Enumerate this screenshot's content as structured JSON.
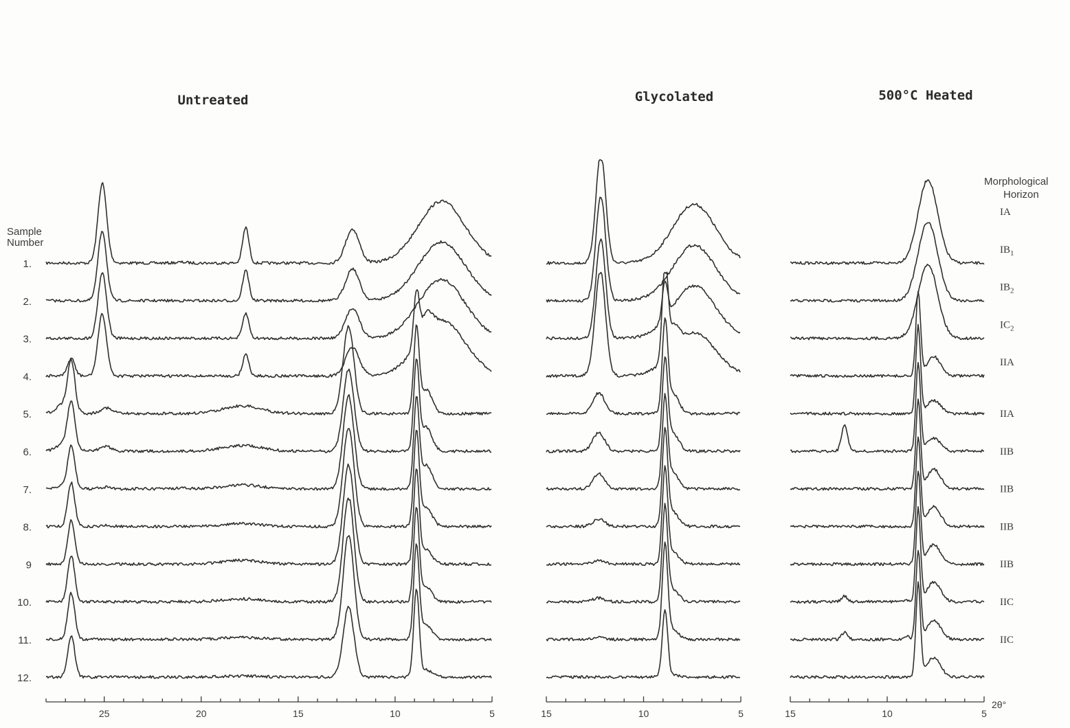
{
  "chart_data": {
    "type": "line",
    "x_unit": "2θ°",
    "panels": [
      {
        "title": "Untreated",
        "xlim": [
          28,
          5
        ],
        "ticks": [
          25,
          20,
          15,
          10,
          5
        ],
        "peaks": [
          [
            27.0,
            0.3,
            26,
            0.4
          ],
          [
            26.7,
            2.2,
            75,
            0.18
          ],
          [
            25.1,
            3.2,
            120,
            0.22
          ],
          [
            24.9,
            0.25,
            14,
            0.3
          ],
          [
            21.0,
            0.1,
            4,
            0.3
          ],
          [
            17.9,
            0.3,
            28,
            1.0
          ],
          [
            17.7,
            1.2,
            52,
            0.16
          ],
          [
            12.4,
            5.0,
            170,
            0.28
          ],
          [
            12.2,
            0.6,
            52,
            0.35
          ],
          [
            8.9,
            1.4,
            150,
            0.14
          ],
          [
            8.4,
            1.0,
            70,
            0.3
          ],
          [
            7.6,
            1.2,
            90,
            1.2
          ]
        ]
      },
      {
        "title": "Glycolated",
        "xlim": [
          15,
          5
        ],
        "ticks": [
          15,
          10,
          5
        ],
        "peaks": [
          [
            12.2,
            5.0,
            160,
            0.25
          ],
          [
            12.3,
            0.7,
            55,
            0.3
          ],
          [
            8.9,
            1.4,
            150,
            0.14
          ],
          [
            8.5,
            0.8,
            60,
            0.3
          ],
          [
            7.4,
            1.2,
            90,
            1.1
          ]
        ]
      },
      {
        "title": "500°C Heated",
        "xlim": [
          15,
          5
        ],
        "ticks": [
          15,
          10,
          5
        ],
        "peaks": [
          [
            7.9,
            4.0,
            135,
            0.5
          ],
          [
            12.2,
            0.3,
            40,
            0.15
          ],
          [
            9.0,
            0.4,
            20,
            0.1
          ],
          [
            8.4,
            1.2,
            150,
            0.12
          ],
          [
            7.6,
            0.8,
            95,
            0.35
          ]
        ]
      }
    ],
    "samples": [
      {
        "number": "1.",
        "horizon": "IA",
        "horizon_sub": "",
        "profile": [
          0,
          0,
          0.95,
          0.2,
          0.3,
          0,
          1.0,
          0,
          0,
          0,
          0,
          0.95,
          1.0,
          0,
          0,
          0,
          0,
          0,
          0,
          1.0,
          0,
          0,
          0,
          0
        ],
        "glyc": [
          1.0,
          0,
          0,
          0,
          0.95
        ],
        "heat": [
          0.9,
          0,
          0,
          0,
          0
        ]
      },
      {
        "number": "2.",
        "horizon": "IB",
        "horizon_sub": "1",
        "profile": [
          0,
          0,
          0.85,
          0,
          0,
          0,
          0.85,
          0,
          0,
          0,
          0,
          0.9,
          0.95,
          0,
          0,
          0,
          0,
          0,
          0,
          0.95,
          0,
          0,
          0,
          0
        ],
        "glyc": [
          0.95,
          0,
          0,
          0,
          0.9
        ],
        "heat": [
          0.85,
          0,
          0,
          0,
          0
        ]
      },
      {
        "number": "3.",
        "horizon": "IB",
        "horizon_sub": "2",
        "profile": [
          0,
          0,
          0.8,
          0,
          0,
          0,
          0.7,
          0,
          0,
          0,
          0,
          0.85,
          0.9,
          0,
          0,
          0,
          0,
          0,
          0,
          0.95,
          0,
          0,
          0,
          0
        ],
        "glyc": [
          0.9,
          0,
          0.35,
          0,
          0.85
        ],
        "heat": [
          0.8,
          0,
          0,
          0,
          0
        ]
      },
      {
        "number": "4.",
        "horizon": "IC",
        "horizon_sub": "2",
        "profile": [
          0,
          0.35,
          0.75,
          0,
          0,
          0,
          0.6,
          0,
          0,
          0,
          0,
          0.8,
          0.5,
          0,
          0,
          0,
          0,
          0.5,
          0.4,
          0.9,
          0,
          0,
          0,
          0
        ],
        "glyc": [
          0.7,
          0.8,
          0.9,
          0.6,
          0.7
        ],
        "heat": [
          0,
          0,
          0,
          0.8,
          0.3
        ]
      },
      {
        "number": "5.",
        "horizon": "IIA",
        "horizon_sub": "",
        "profile": [
          0.6,
          0.9,
          0,
          0.6,
          0,
          0.4,
          0,
          0.75,
          0,
          0,
          0,
          0,
          0.65,
          0,
          0,
          0,
          0,
          0.8,
          0.5,
          0,
          0,
          0,
          0,
          0
        ],
        "glyc": [
          0,
          0.55,
          0.85,
          0.5,
          0
        ],
        "heat": [
          0,
          0,
          0,
          0.85,
          0.2
        ]
      },
      {
        "number": "6.",
        "horizon": "IIA",
        "horizon_sub": "",
        "profile": [
          0.5,
          0.85,
          0,
          0.5,
          0,
          0.3,
          0,
          0.7,
          0,
          0,
          0,
          0,
          0.55,
          0,
          0,
          0,
          0,
          0.85,
          0.5,
          0,
          0,
          0,
          0,
          0
        ],
        "glyc": [
          0,
          0.5,
          0.85,
          0.45,
          0
        ],
        "heat": [
          0,
          1.0,
          0,
          0.85,
          0.2
        ]
      },
      {
        "number": "7.",
        "horizon": "IIB",
        "horizon_sub": "",
        "profile": [
          0.2,
          0.8,
          0,
          0.2,
          0.3,
          0.2,
          0,
          0.8,
          0,
          0,
          0,
          0,
          0.35,
          0,
          0,
          0,
          0,
          0.85,
          0.5,
          0,
          0,
          0,
          0,
          0
        ],
        "glyc": [
          0,
          0.4,
          0.85,
          0.4,
          0
        ],
        "heat": [
          0,
          0,
          0,
          0.85,
          0.3
        ]
      },
      {
        "number": "8.",
        "horizon": "IIB",
        "horizon_sub": "",
        "profile": [
          0,
          0.85,
          0,
          0.1,
          0,
          0.15,
          0,
          0.85,
          0,
          0,
          0,
          0,
          0.2,
          0,
          0,
          0,
          0,
          0.9,
          0.4,
          0,
          0,
          0,
          0,
          0
        ],
        "glyc": [
          0,
          0.2,
          0.9,
          0.35,
          0
        ],
        "heat": [
          0,
          0,
          0,
          0.85,
          0.3
        ]
      },
      {
        "number": "9",
        "horizon": "IIB",
        "horizon_sub": "",
        "profile": [
          0,
          0.85,
          0,
          0,
          0,
          0.2,
          0,
          0.85,
          0,
          0,
          0,
          0,
          0.15,
          0,
          0,
          0,
          0,
          0.9,
          0.3,
          0,
          0,
          0,
          0,
          0
        ],
        "glyc": [
          0,
          0.1,
          0.9,
          0.3,
          0
        ],
        "heat": [
          0,
          0,
          0,
          0.9,
          0.3
        ]
      },
      {
        "number": "10.",
        "horizon": "IIB",
        "horizon_sub": "",
        "profile": [
          0,
          0.9,
          0,
          0,
          0,
          0.15,
          0,
          0.9,
          0,
          0,
          0,
          0,
          0.12,
          0,
          0,
          0,
          0,
          0.9,
          0.3,
          0,
          0,
          0,
          0,
          0
        ],
        "glyc": [
          0,
          0.1,
          0.9,
          0.3,
          0
        ],
        "heat": [
          0,
          0.2,
          0.1,
          0.9,
          0.3
        ]
      },
      {
        "number": "11.",
        "horizon": "IIC",
        "horizon_sub": "",
        "profile": [
          0,
          0.9,
          0,
          0,
          0,
          0.1,
          0,
          0.9,
          0,
          0,
          0,
          0,
          0.05,
          0,
          0,
          0,
          0,
          0.9,
          0.3,
          0,
          0,
          0,
          0,
          0
        ],
        "glyc": [
          0,
          0.05,
          0.9,
          0.25,
          0
        ],
        "heat": [
          0,
          0.25,
          0.3,
          0.85,
          0.3
        ]
      },
      {
        "number": "12.",
        "horizon": "IIC",
        "horizon_sub": "",
        "profile": [
          0,
          0.8,
          0,
          0,
          0,
          0.05,
          0,
          0.6,
          0,
          0,
          0,
          0,
          0,
          0,
          0,
          0,
          0,
          0.85,
          0.15,
          0,
          0,
          0,
          0,
          0
        ],
        "glyc": [
          0,
          0,
          0.65,
          0.05,
          0
        ],
        "heat": [
          0,
          0,
          0,
          0.9,
          0.3
        ]
      }
    ]
  },
  "labels": {
    "sample_heading_1": "Sample",
    "sample_heading_2": "Number",
    "horizon_heading_1": "Morphological",
    "horizon_heading_2": "Horizon",
    "axis_unit": "2θ°"
  },
  "colors": {
    "ink": "#2f2f2f",
    "paper": "#fdfdfc"
  }
}
